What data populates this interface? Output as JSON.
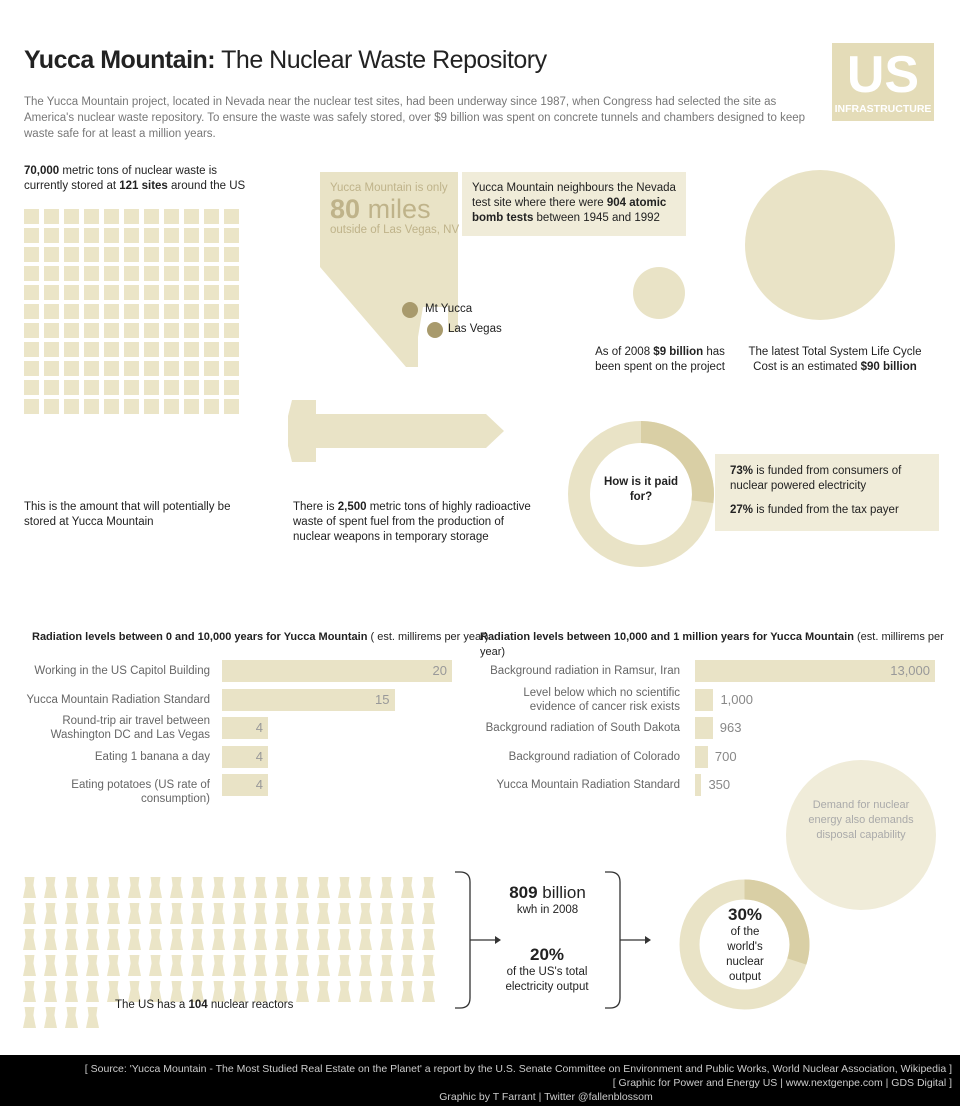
{
  "header": {
    "title_bold": "Yucca Mountain:",
    "title_rest": "The Nuclear Waste Repository",
    "intro": "The Yucca Mountain project, located in Nevada near the nuclear test sites, had been underway since 1987, when Congress had selected the site as America's nuclear waste repository. To ensure the waste was safely stored, over $9 billion was spent on concrete tunnels and chambers designed to keep waste safe for at least a million years.",
    "logo": {
      "big": "US",
      "small": "INFRASTRUCTURE"
    }
  },
  "waste": {
    "top_b1": "70,000",
    "top_t1": " metric tons of nuclear waste is currently stored at ",
    "top_b2": "121 sites",
    "top_t2": " around the US",
    "count": 121,
    "bottom": "This is the amount that will potentially be stored at Yucca Mountain"
  },
  "nevada": {
    "only": "Yucca Mountain is only",
    "miles_num": "80",
    "miles_word": "miles",
    "outside": "outside of Las Vegas, NV",
    "mt_yucca": "Mt Yucca",
    "las_vegas": "Las Vegas",
    "tests_t1": "Yucca Mountain neighbours the Nevada test site where there were ",
    "tests_b": "904 atomic bomb tests",
    "tests_t2": " between 1945 and 1992"
  },
  "costs": {
    "spent_t1": "As of 2008 ",
    "spent_b": "$9 billion",
    "spent_t2": " has been spent on the project",
    "total_t1": "The latest Total System Life Cycle Cost is an estimated ",
    "total_b": "$90 billion"
  },
  "weapons": {
    "t1": "There is ",
    "b": "2,500",
    "t2": " metric tons of highly radioactive waste of spent fuel from the production of nuclear weapons in temporary storage"
  },
  "funding": {
    "center": "How is it paid for?",
    "consumers_pct": 73,
    "taxpayer_pct": 27,
    "consumers_b": "73%",
    "consumers_t": " is funded from consumers of nuclear powered electricity",
    "taxpayer_b": "27%",
    "taxpayer_t": " is funded from the tax payer"
  },
  "chart_data": [
    {
      "type": "bar",
      "title": "Radiation levels between 0 and 10,000 years for Yucca Mountain",
      "unit": "( est. millirems per year)",
      "categories": [
        "Working in the US Capitol Building",
        "Yucca Mountain Radiation Standard",
        "Round-trip air travel between Washington DC and Las Vegas",
        "Eating 1 banana a day",
        "Eating potatoes (US rate of consumption)"
      ],
      "values": [
        20,
        15,
        4,
        4,
        4
      ],
      "labels": [
        "20",
        "15",
        "4",
        "4",
        "4"
      ],
      "xlim": [
        0,
        20
      ]
    },
    {
      "type": "bar",
      "title": "Radiation levels between 10,000 and 1 million years for Yucca Mountain",
      "unit": "(est. millirems per year)",
      "categories": [
        "Background radiation in Ramsur, Iran",
        "Level below which no scientific evidence of cancer risk exists",
        "Background radiation of South Dakota",
        "Background radiation of Colorado",
        "Yucca Mountain Radiation Standard"
      ],
      "values": [
        13000,
        1000,
        963,
        700,
        350
      ],
      "labels": [
        "13,000",
        "1,000",
        "963",
        "700",
        "350"
      ],
      "xlim": [
        0,
        13000
      ]
    }
  ],
  "demand": "Demand for nuclear energy also demands disposal capability",
  "reactors": {
    "count": 104,
    "t1": "The US has a ",
    "b": "104",
    "t2": " nuclear reactors"
  },
  "output": {
    "kwh_b": "809",
    "kwh_t": " billion",
    "kwh_sub": "kwh in 2008",
    "pct_b": "20%",
    "pct_sub": "of the US's total electricity output",
    "world_b": "30%",
    "world_sub": "of the world's nuclear output",
    "world_pct": 30
  },
  "footer": {
    "source": "[ Source: 'Yucca Mountain - The Most Studied Real Estate on the Planet' a report by the U.S. Senate Committee on Environment and Public Works, World Nuclear Association, Wikipedia ]",
    "graphic_for": "[ Graphic for Power and Energy US | www.nextgenpe.com | GDS Digital ]",
    "credit": "Graphic by T Farrant | Twitter @fallenblossom"
  },
  "colors": {
    "beige": "#e9e3c6",
    "beige_dark": "#d9cfa5",
    "dot": "#a89a6c",
    "footer": "#000000"
  }
}
